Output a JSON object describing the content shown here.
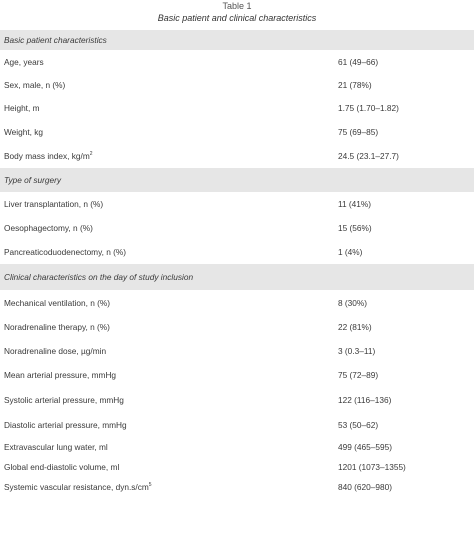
{
  "caption": {
    "table_number": "Table 1",
    "title": "Basic patient and clinical characteristics"
  },
  "rows": [
    {
      "kind": "section",
      "label": "Basic patient characteristics"
    },
    {
      "kind": "row",
      "label": "Age, years",
      "value": "61 (49–66)"
    },
    {
      "kind": "row",
      "label": "Sex, male, n (%)",
      "value": "21 (78%)"
    },
    {
      "kind": "row",
      "label": "Height, m",
      "value": "1.75 (1.70–1.82)"
    },
    {
      "kind": "row",
      "label": "Weight, kg",
      "value": "75 (69–85)"
    },
    {
      "kind": "row",
      "label": "Body mass index, kg/m",
      "sup": "2",
      "value": "24.5 (23.1–27.7)"
    },
    {
      "kind": "section",
      "label": "Type of surgery"
    },
    {
      "kind": "row",
      "label": "Liver transplantation, n (%)",
      "value": "11 (41%)"
    },
    {
      "kind": "row",
      "label": "Oesophagectomy, n (%)",
      "value": "15 (56%)"
    },
    {
      "kind": "row",
      "label": "Pancreaticoduodenectomy, n (%)",
      "value": "1 (4%)"
    },
    {
      "kind": "section",
      "label": "Clinical characteristics on the day of study inclusion"
    },
    {
      "kind": "row",
      "label": "Mechanical ventilation, n (%)",
      "value": "8 (30%)"
    },
    {
      "kind": "row",
      "label": "Noradrenaline therapy, n (%)",
      "value": "22 (81%)"
    },
    {
      "kind": "row",
      "label": "Noradrenaline dose, µg/min",
      "value": "3 (0.3–11)"
    },
    {
      "kind": "row",
      "label": "Mean arterial pressure, mmHg",
      "value": "75 (72–89)"
    },
    {
      "kind": "row",
      "label": "Systolic arterial pressure, mmHg",
      "value": "122 (116–136)"
    },
    {
      "kind": "row",
      "label": "Diastolic arterial pressure, mmHg",
      "value": "53 (50–62)"
    },
    {
      "kind": "row",
      "label": "Extravascular lung water, ml",
      "value": "499 (465–595)"
    },
    {
      "kind": "row",
      "label": "Global end-diastolic volume, ml",
      "value": "1201 (1073–1355)"
    },
    {
      "kind": "row",
      "label": "Systemic vascular resistance, dyn.s/cm",
      "sup": "5",
      "value": "840 (620–980)"
    }
  ]
}
